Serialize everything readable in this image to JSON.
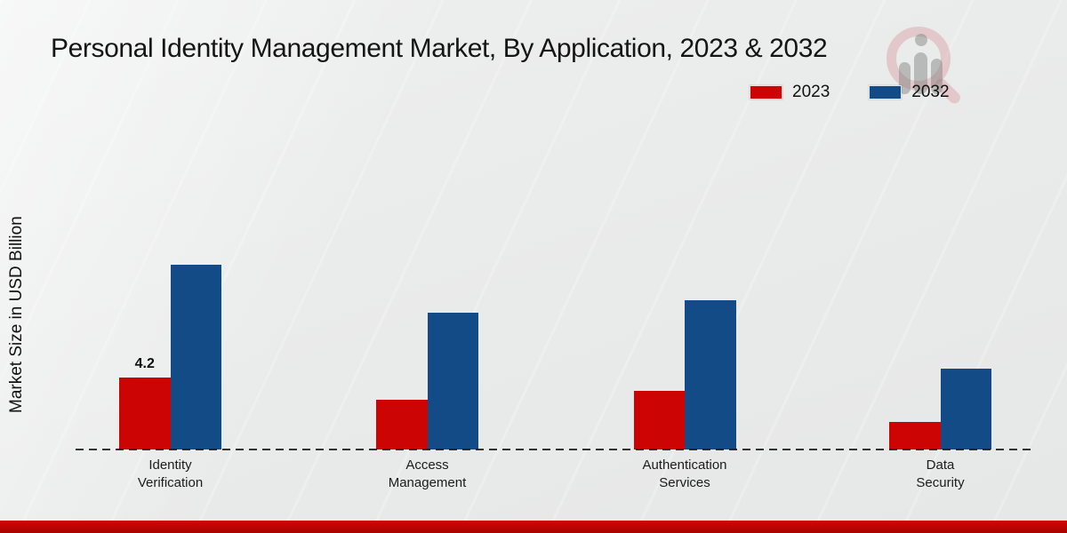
{
  "chart_data": {
    "type": "bar",
    "title": "Personal Identity Management Market, By Application, 2023 & 2032",
    "ylabel": "Market Size in USD Billion",
    "xlabel": "",
    "categories": [
      "Identity Verification",
      "Access Management",
      "Authentication Services",
      "Data Security"
    ],
    "series": [
      {
        "name": "2023",
        "color": "#cc0404",
        "values": [
          4.2,
          2.9,
          3.4,
          1.6
        ],
        "data_labels": [
          "4.2",
          "",
          "",
          ""
        ]
      },
      {
        "name": "2032",
        "color": "#134b87",
        "values": [
          10.8,
          8.0,
          8.7,
          4.7
        ],
        "data_labels": [
          "",
          "",
          "",
          ""
        ]
      }
    ],
    "ylim": [
      0,
      12
    ],
    "grid": false,
    "legend_position": "top-right",
    "baseline_style": "dashed"
  },
  "branding": {
    "watermark_icon": "mrfr-logo-icon",
    "bottom_strip_color": "#b50404"
  }
}
